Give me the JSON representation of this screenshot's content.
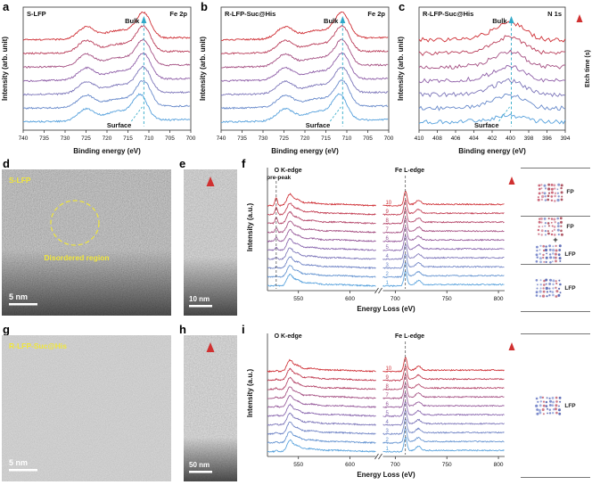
{
  "panel_letters": {
    "a": "a",
    "b": "b",
    "c": "c",
    "d": "d",
    "e": "e",
    "f": "f",
    "g": "g",
    "h": "h",
    "i": "i"
  },
  "colors": {
    "curve_low": "#55a0dc",
    "curve_mid": "#8f5fa8",
    "curve_high": "#cf2f35",
    "bulk_line": "#2fa8c8",
    "dashed_black": "#444444",
    "annotation_yellow": "#f0e63c",
    "etch_arrow_top": "#d03030",
    "etch_arrow_bottom": "#4f94d8"
  },
  "chart_data": [
    {
      "id": "a",
      "type": "line",
      "subtype": "xps_fe2p",
      "title": "S-LFP",
      "corner_label": "Fe 2p",
      "xlabel": "Binding energy (eV)",
      "ylabel": "Intensity (arb. unit)",
      "x_range": [
        740,
        700
      ],
      "x_ticks": [
        740,
        735,
        730,
        725,
        720,
        715,
        710,
        705,
        700
      ],
      "n_curves": 7,
      "peaks": {
        "fe2p32": 711.2,
        "fe2p12": 724.9,
        "satellite": 719.0,
        "surface_shift": 0.8
      },
      "dashed_line_x": 711.2,
      "labels": {
        "bulk": "Bulk",
        "surface": "Surface"
      }
    },
    {
      "id": "b",
      "type": "line",
      "subtype": "xps_fe2p",
      "title": "R-LFP-Suc@His",
      "corner_label": "Fe 2p",
      "xlabel": "Binding energy (eV)",
      "ylabel": "Intensity (arb. unit)",
      "x_range": [
        740,
        700
      ],
      "x_ticks": [
        740,
        735,
        730,
        725,
        720,
        715,
        710,
        705,
        700
      ],
      "n_curves": 7,
      "peaks": {
        "fe2p32": 711.0,
        "fe2p12": 724.7,
        "satellite": 718.8,
        "surface_shift": 0.6
      },
      "dashed_line_x": 711.0,
      "labels": {
        "bulk": "Bulk",
        "surface": "Surface"
      }
    },
    {
      "id": "c",
      "type": "line",
      "subtype": "xps_n1s",
      "title": "R-LFP-Suc@His",
      "corner_label": "N 1s",
      "xlabel": "Binding energy (eV)",
      "ylabel": "Intensity (arb. unit)",
      "x_range": [
        410,
        394
      ],
      "x_ticks": [
        410,
        408,
        406,
        404,
        402,
        400,
        398,
        396,
        394
      ],
      "n_curves": 7,
      "peaks": {
        "n1s": 399.9
      },
      "dashed_line_x": 399.9,
      "labels": {
        "bulk": "Bulk",
        "surface": "Surface"
      },
      "etch_label": "Etch time (s)"
    },
    {
      "id": "f",
      "type": "line",
      "subtype": "eels",
      "xlabel": "Energy Loss (eV)",
      "ylabel": "Intensity (a.u.)",
      "seg1_range": [
        520,
        625
      ],
      "seg2_range": [
        688,
        806
      ],
      "x_ticks_seg1": [
        550,
        600
      ],
      "x_ticks_seg2": [
        700,
        750,
        800
      ],
      "n_curves": 10,
      "curve_numbers": [
        "1",
        "2",
        "3",
        "4",
        "5",
        "6",
        "7",
        "8",
        "9",
        "10"
      ],
      "peaks": {
        "o_prepeak": 528.5,
        "o_main": 541.5,
        "fe_l3": 709.8,
        "fe_l2": 722.5
      },
      "dashed_prepeak_x": 528.5,
      "dashed_fe_x": 709.8,
      "prepeak_trend": "increasing",
      "labels": {
        "o_edge": "O K-edge",
        "pre_peak": "pre-peak",
        "fe_edge": "Fe L-edge"
      }
    },
    {
      "id": "i",
      "type": "line",
      "subtype": "eels",
      "xlabel": "Energy Loss (eV)",
      "ylabel": "Intensity (a.u.)",
      "seg1_range": [
        520,
        625
      ],
      "seg2_range": [
        688,
        806
      ],
      "x_ticks_seg1": [
        550,
        600
      ],
      "x_ticks_seg2": [
        700,
        750,
        800
      ],
      "n_curves": 10,
      "curve_numbers": [
        "1",
        "2",
        "3",
        "4",
        "5",
        "6",
        "7",
        "8",
        "9",
        "10"
      ],
      "peaks": {
        "o_main": 541.5,
        "fe_l3": 709.8,
        "fe_l2": 722.5
      },
      "dashed_prepeak_x": null,
      "dashed_fe_x": 709.8,
      "prepeak_trend": "flat",
      "labels": {
        "o_edge": "O K-edge",
        "fe_edge": "Fe L-edge"
      }
    }
  ],
  "tem_panels": {
    "d": {
      "label": "S-LFP",
      "annotation": "Disordered region",
      "scale_bar": "5 nm"
    },
    "e": {
      "scale_bar": "10 nm"
    },
    "g": {
      "label": "R-LFP-Suc@His",
      "scale_bar": "5 nm"
    },
    "h": {
      "scale_bar": "50 nm"
    }
  },
  "insets": {
    "palettes": {
      "fp": [
        "#c85a6e",
        "#d88fa0",
        "#8090cc",
        "#a84858"
      ],
      "lfp": [
        "#7080c8",
        "#98a8dc",
        "#c86a7a",
        "#5060b0"
      ]
    },
    "f_groups": [
      {
        "items": [
          {
            "label": "FP",
            "palette": "fp"
          }
        ]
      },
      {
        "plus": "+",
        "items": [
          {
            "label": "FP",
            "palette": "fp"
          },
          {
            "label": "LFP",
            "palette": "lfp"
          }
        ]
      },
      {
        "items": [
          {
            "label": "LFP",
            "palette": "lfp"
          }
        ]
      }
    ],
    "i_group": {
      "items": [
        {
          "label": "LFP",
          "palette": "lfp"
        }
      ]
    }
  }
}
